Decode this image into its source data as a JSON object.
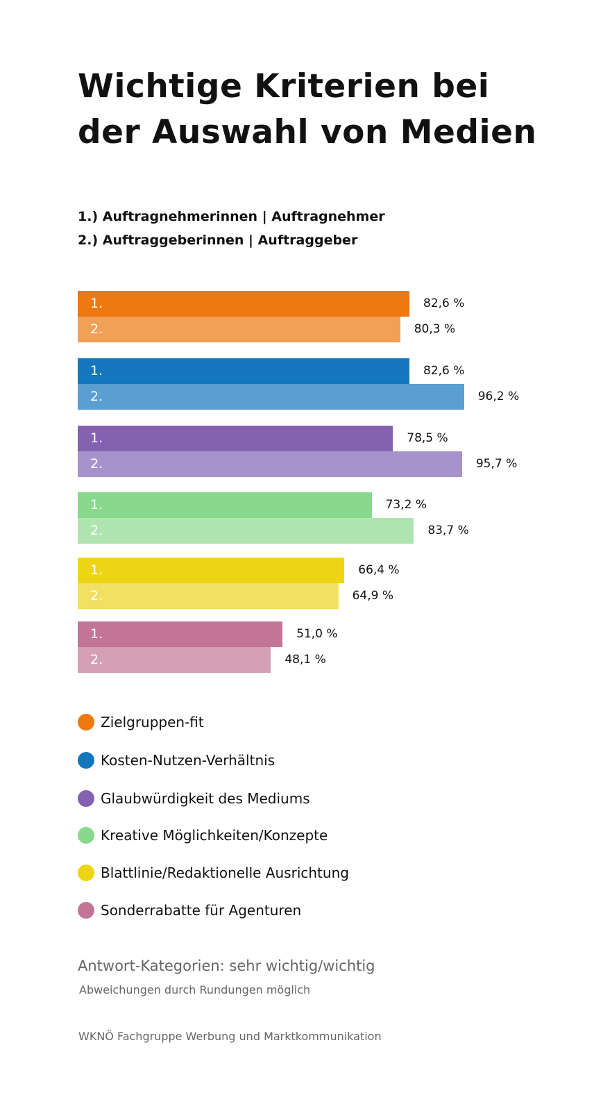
{
  "chart_data": {
    "type": "bar",
    "orientation": "horizontal",
    "title": "Wichtige Kriterien bei der Auswahl von Medien",
    "title_lines": [
      "Wichtige Kriterien bei",
      "der Auswahl von Medien"
    ],
    "series_legend": [
      "1.) Auftragnehmerinnen | Auftragnehmer",
      "2.) Auftraggeberinnen | Auftraggeber"
    ],
    "series_labels": [
      "1.",
      "2."
    ],
    "unit": "%",
    "xlim": [
      0,
      100
    ],
    "grid": false,
    "categories": [
      {
        "name": "Zielgruppen-fit",
        "color": "#EE7910",
        "color_light": "#F2A055",
        "values": [
          82.6,
          80.3
        ],
        "labels": [
          "82,6 %",
          "80,3 %"
        ]
      },
      {
        "name": "Kosten-Nutzen-Verhältnis",
        "color": "#1476BC",
        "color_light": "#5A9FD1",
        "values": [
          82.6,
          96.2
        ],
        "labels": [
          "82,6 %",
          "96,2 %"
        ]
      },
      {
        "name": "Glaubwürdigkeit des Mediums",
        "color": "#8462B2",
        "color_light": "#A892CB",
        "values": [
          78.5,
          95.7
        ],
        "labels": [
          "78,5 %",
          "95,7 %"
        ]
      },
      {
        "name": "Kreative Möglichkeiten/Konzepte",
        "color": "#88D98B",
        "color_light": "#B0E4AF",
        "values": [
          73.2,
          83.7
        ],
        "labels": [
          "73,2 %",
          "83,7 %"
        ]
      },
      {
        "name": "Blattlinie/Redaktionelle Ausrichtung",
        "color": "#EDD516",
        "color_light": "#F3E062",
        "values": [
          66.4,
          64.9
        ],
        "labels": [
          "66,4 %",
          "64,9 %"
        ]
      },
      {
        "name": "Sonderrabatte für Agenturen",
        "color": "#C27596",
        "color_light": "#D4A0B6",
        "values": [
          51.0,
          48.1
        ],
        "labels": [
          "51,0 %",
          "48,1 %"
        ]
      }
    ]
  },
  "footer": {
    "note1": "Antwort-Kategorien: sehr wichtig/wichtig",
    "note2": "Abweichungen durch Rundungen möglich",
    "source": "WKNÖ Fachgruppe Werbung und Marktkommunikation"
  }
}
